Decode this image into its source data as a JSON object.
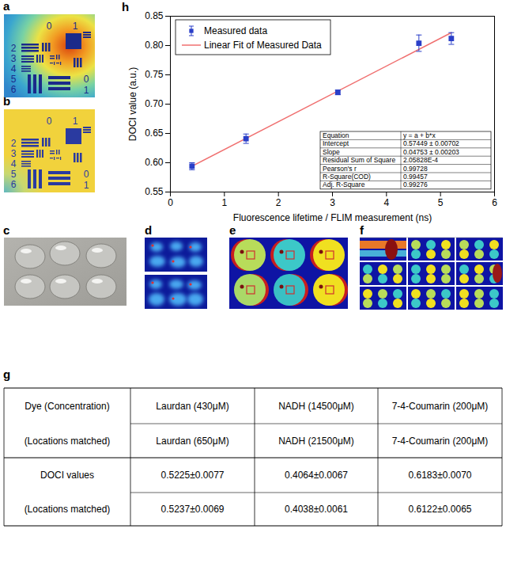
{
  "panels": {
    "a": {
      "label": "a",
      "target_numbers": [
        "0",
        "1",
        "2",
        "3",
        "4",
        "5",
        "6",
        "0",
        "1"
      ]
    },
    "b": {
      "label": "b",
      "target_numbers": [
        "0",
        "1",
        "2",
        "3",
        "4",
        "5",
        "6",
        "0",
        "1"
      ]
    },
    "c": {
      "label": "c"
    },
    "d": {
      "label": "d"
    },
    "e": {
      "label": "e"
    },
    "f": {
      "label": "f"
    },
    "g": {
      "label": "g",
      "table": {
        "rows": [
          [
            "Dye (Concentration)",
            "Laurdan (430μM)",
            "NADH (14500μM)",
            "7-4-Coumarin (200μM)"
          ],
          [
            "(Locations matched)",
            "Laurdan (650μM)",
            "NADH (21500μM)",
            "7-4-Coumarin (200μM)"
          ],
          [
            "DOCI values",
            "0.5225±0.0077",
            "0.4064±0.0067",
            "0.6183±0.0070"
          ],
          [
            "(Locations matched)",
            "0.5237±0.0069",
            "0.4038±0.0061",
            "0.6122±0.0065"
          ]
        ]
      }
    }
  },
  "chart_data": {
    "panel_label": "h",
    "type": "scatter",
    "x_label": "Fluorescence lifetime / FLIM measurement (ns)",
    "y_label": "DOCI value (a.u.)",
    "x": [
      0.4,
      1.4,
      3.1,
      4.6,
      5.2
    ],
    "series": [
      {
        "name": "Measured data",
        "type": "scatter",
        "marker": "square",
        "color": "#2a3fc8",
        "values": [
          0.594,
          0.641,
          0.72,
          0.804,
          0.812
        ],
        "errors": [
          0.006,
          0.008,
          0.004,
          0.014,
          0.01
        ]
      },
      {
        "name": "Linear Fit of Measured Data",
        "type": "line",
        "line_style": "solid",
        "color": "#f07070",
        "x": [
          0.4,
          5.2
        ],
        "values": [
          0.594,
          0.822
        ]
      }
    ],
    "xlim": [
      0,
      6
    ],
    "xticks": [
      0,
      1,
      2,
      3,
      4,
      5,
      6
    ],
    "ylim": [
      0.55,
      0.85
    ],
    "yticks": [
      0.55,
      {
        "value": 0.6,
        "label": "0.60"
      },
      0.65,
      {
        "value": 0.7,
        "label": "0.70"
      },
      0.75,
      {
        "value": 0.8,
        "label": "0.80"
      },
      0.85
    ],
    "grid": false,
    "legend": "top-left",
    "fit_table": {
      "rows": [
        [
          "Equation",
          "y = a + b*x"
        ],
        [
          "Intercept",
          "0.57449 ± 0.00702"
        ],
        [
          "Slope",
          "0.04753 ± 0.00203"
        ],
        [
          "Residual Sum of Square",
          "2.05828E-4"
        ],
        [
          "Pearson's r",
          "0.99728"
        ],
        [
          "R-Square(COD)",
          "0.99457"
        ],
        [
          "Adj. R-Square",
          "0.99276"
        ]
      ]
    }
  }
}
